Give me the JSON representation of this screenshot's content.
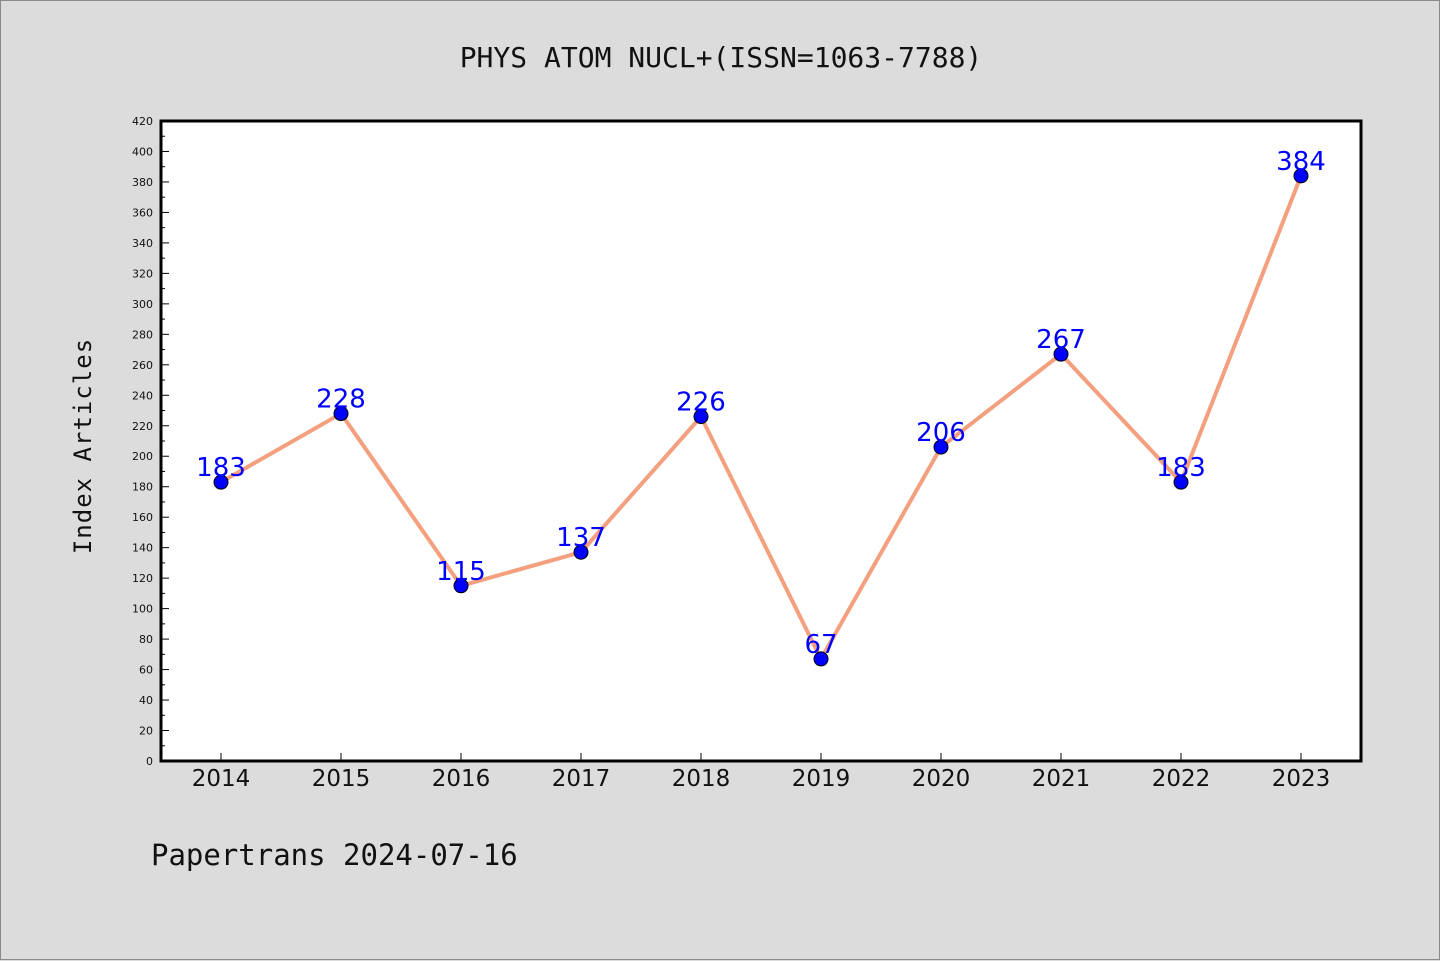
{
  "chart_data": {
    "type": "line",
    "title": "PHYS ATOM NUCL+(ISSN=1063-7788)",
    "xlabel": "",
    "ylabel": "Index Articles",
    "categories": [
      "2014",
      "2015",
      "2016",
      "2017",
      "2018",
      "2019",
      "2020",
      "2021",
      "2022",
      "2023"
    ],
    "series": [
      {
        "values": [
          183,
          228,
          115,
          137,
          226,
          67,
          206,
          267,
          183,
          384
        ]
      }
    ],
    "data_labels": [
      "183",
      "228",
      "115",
      "137",
      "226",
      "67",
      "206",
      "267",
      "183",
      "384"
    ],
    "ylim": [
      0,
      420
    ],
    "yticks": [
      "0",
      "20",
      "40",
      "60",
      "80",
      "100",
      "120",
      "140",
      "160",
      "180",
      "200",
      "220",
      "240",
      "260",
      "280",
      "300",
      "320",
      "340",
      "360",
      "380",
      "400",
      "420"
    ],
    "grid": false,
    "legend": "none",
    "colors": {
      "line": "#f4a07f",
      "marker": "#0000ff",
      "label": "#0000ff",
      "plot_bg": "#ffffff",
      "page_bg": "#dcdcdc"
    }
  },
  "footer": "Papertrans 2024-07-16"
}
